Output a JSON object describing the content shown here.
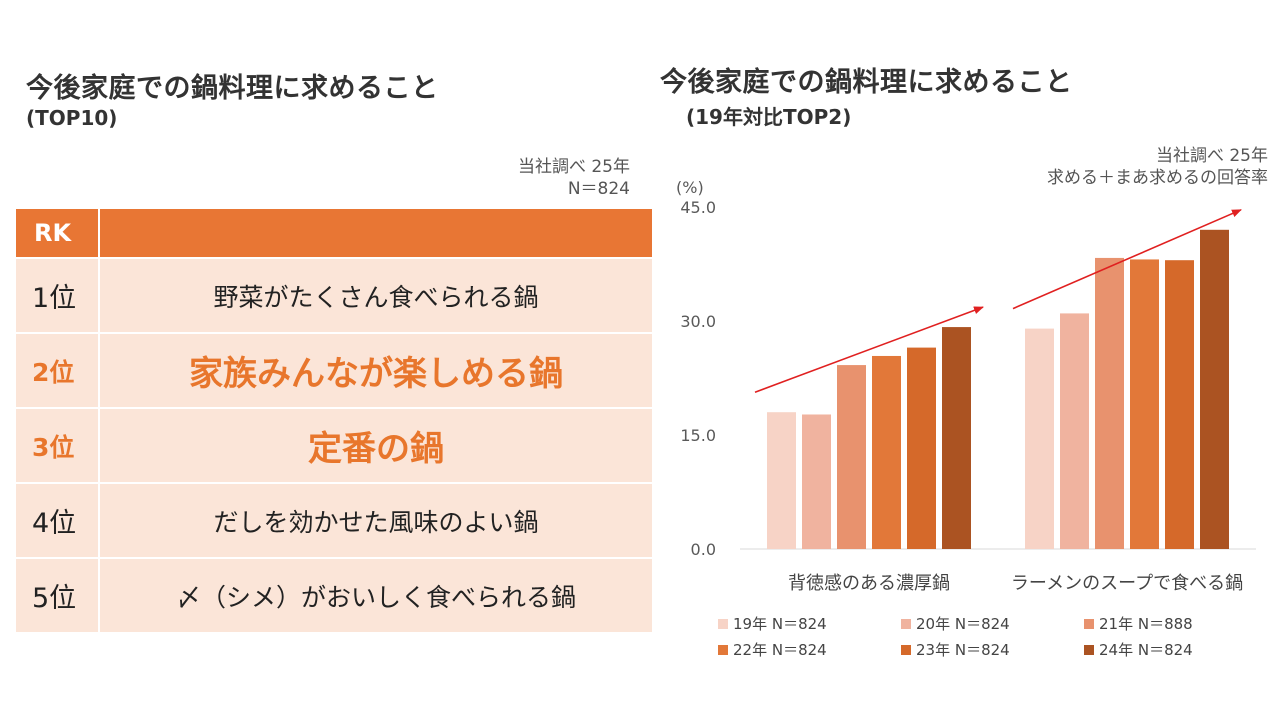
{
  "left_panel": {
    "title": "今後家庭での鍋料理に求めること",
    "subtitle": "(TOP10)",
    "note_line1": "当社調べ 25年",
    "note_line2": "N＝824",
    "header_rk": "RK",
    "rows": [
      {
        "rank": "1位",
        "item": "野菜がたくさん食べられる鍋",
        "highlight": false
      },
      {
        "rank": "2位",
        "item": "家族みんなが楽しめる鍋",
        "highlight": true
      },
      {
        "rank": "3位",
        "item": "定番の鍋",
        "highlight": true
      },
      {
        "rank": "4位",
        "item": "だしを効かせた風味のよい鍋",
        "highlight": false
      },
      {
        "rank": "5位",
        "item": "〆（シメ）がおいしく食べられる鍋",
        "highlight": false
      }
    ]
  },
  "right_panel": {
    "title": "今後家庭での鍋料理に求めること",
    "subtitle": "(19年対比TOP2)",
    "note_line1": "当社調べ 25年",
    "note_line2": "求める＋まあ求めるの回答率"
  },
  "chart_data": {
    "type": "bar",
    "unit_label": "(%)",
    "ylim": [
      0,
      45
    ],
    "yticks": [
      "0.0",
      "15.0",
      "30.0",
      "45.0"
    ],
    "categories": [
      "背徳感のある濃厚鍋",
      "ラーメンのスープで食べる鍋"
    ],
    "series": [
      {
        "name": "19年 N＝824",
        "color": "#f7d3c6",
        "values": [
          18.0,
          29.0
        ]
      },
      {
        "name": "20年 N＝824",
        "color": "#f0b39f",
        "values": [
          17.7,
          31.0
        ]
      },
      {
        "name": "21年 N＝888",
        "color": "#e8926e",
        "values": [
          24.2,
          38.3
        ]
      },
      {
        "name": "22年 N＝824",
        "color": "#e27839",
        "values": [
          25.4,
          38.1
        ]
      },
      {
        "name": "23年 N＝824",
        "color": "#d5692a",
        "values": [
          26.5,
          38.0
        ]
      },
      {
        "name": "24年 N＝824",
        "color": "#ab5322",
        "values": [
          29.2,
          42.0
        ]
      }
    ],
    "trend_color": "#e02020",
    "grid": false,
    "legend_placement": "bottom"
  }
}
